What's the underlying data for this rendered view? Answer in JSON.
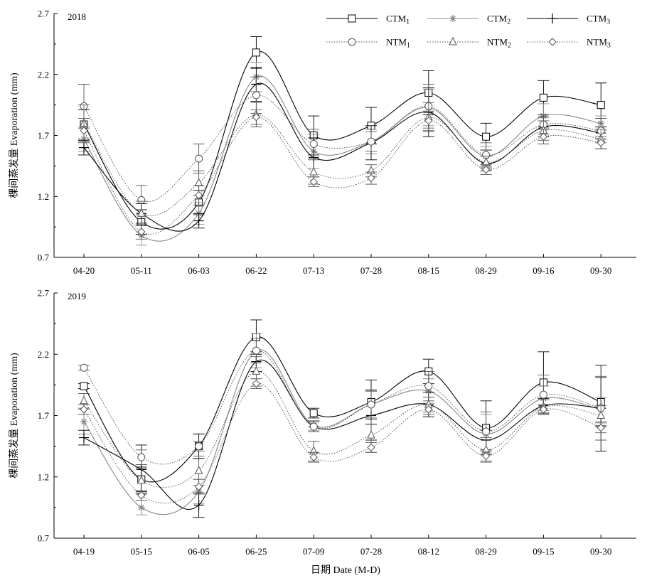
{
  "figure": {
    "x_axis_title": "日期 Date (M-D)",
    "legend": [
      {
        "label": "CTM",
        "sub": "1",
        "marker": "square",
        "style": "solid",
        "color": "#000000"
      },
      {
        "label": "CTM",
        "sub": "2",
        "marker": "asterisk",
        "style": "solid",
        "color": "#888888"
      },
      {
        "label": "CTM",
        "sub": "3",
        "marker": "plus",
        "style": "solid",
        "color": "#000000"
      },
      {
        "label": "NTM",
        "sub": "1",
        "marker": "circle",
        "style": "dotted",
        "color": "#555555"
      },
      {
        "label": "NTM",
        "sub": "2",
        "marker": "triangle",
        "style": "dotted",
        "color": "#555555"
      },
      {
        "label": "NTM",
        "sub": "3",
        "marker": "diamond",
        "style": "dotted",
        "color": "#555555"
      }
    ]
  },
  "chart_data": [
    {
      "type": "line",
      "panel_label": "2018",
      "ylabel": "棵间蒸发量 Evaporation (mm)",
      "ylim": [
        0.7,
        2.7
      ],
      "yticks": [
        "0.7",
        "1.2",
        "1.7",
        "2.2",
        "2.7"
      ],
      "categories": [
        "04-20",
        "05-11",
        "06-03",
        "06-22",
        "07-13",
        "07-28",
        "08-15",
        "08-29",
        "09-16",
        "09-30"
      ],
      "series": [
        {
          "name": "CTM1",
          "values": [
            1.79,
            0.99,
            1.15,
            2.38,
            1.7,
            1.78,
            2.05,
            1.69,
            2.01,
            1.95
          ],
          "err": [
            0.12,
            0.1,
            0.1,
            0.13,
            0.16,
            0.15,
            0.18,
            0.11,
            0.14,
            0.18
          ]
        },
        {
          "name": "CTM2",
          "values": [
            1.67,
            0.88,
            1.06,
            2.18,
            1.57,
            1.65,
            1.93,
            1.53,
            1.86,
            1.8
          ],
          "err": [
            0.1,
            0.08,
            0.09,
            0.12,
            0.14,
            0.1,
            0.15,
            0.08,
            0.1,
            0.06
          ]
        },
        {
          "name": "CTM3",
          "values": [
            1.6,
            1.06,
            1.0,
            2.12,
            1.52,
            1.64,
            1.89,
            1.47,
            1.77,
            1.72
          ],
          "err": [
            0.06,
            0.08,
            0.06,
            0.14,
            0.16,
            0.14,
            0.2,
            0.06,
            0.08,
            0.05
          ]
        },
        {
          "name": "NTM1",
          "values": [
            1.94,
            1.17,
            1.51,
            2.03,
            1.63,
            1.65,
            1.94,
            1.54,
            1.79,
            1.74
          ],
          "err": [
            0.18,
            0.12,
            0.12,
            0.15,
            0.12,
            0.08,
            0.18,
            0.1,
            0.08,
            0.1
          ]
        },
        {
          "name": "NTM2",
          "values": [
            1.8,
            1.06,
            1.31,
            1.87,
            1.4,
            1.41,
            1.85,
            1.48,
            1.74,
            1.67
          ],
          "err": [
            0.15,
            0.1,
            0.1,
            0.1,
            0.1,
            0.05,
            0.12,
            0.05,
            0.08,
            0.08
          ]
        },
        {
          "name": "NTM3",
          "values": [
            1.74,
            0.91,
            1.21,
            1.85,
            1.32,
            1.35,
            1.82,
            1.42,
            1.69,
            1.64
          ],
          "err": [
            0.1,
            0.06,
            0.08,
            0.06,
            0.04,
            0.05,
            0.08,
            0.04,
            0.06,
            0.05
          ]
        }
      ]
    },
    {
      "type": "line",
      "panel_label": "2019",
      "ylabel": "棵间蒸发量 Evaporation (mm)",
      "ylim": [
        0.7,
        2.7
      ],
      "yticks": [
        "0.7",
        "1.2",
        "1.7",
        "2.2",
        "2.7"
      ],
      "categories": [
        "04-19",
        "05-15",
        "06-05",
        "06-25",
        "07-09",
        "07-28",
        "08-12",
        "08-29",
        "09-15",
        "09-30"
      ],
      "series": [
        {
          "name": "CTM1",
          "values": [
            1.94,
            1.18,
            1.45,
            2.34,
            1.72,
            1.81,
            2.06,
            1.6,
            1.97,
            1.81
          ],
          "err": [
            0.02,
            0.1,
            0.1,
            0.14,
            0.04,
            0.18,
            0.1,
            0.22,
            0.25,
            0.2
          ]
        },
        {
          "name": "CTM2",
          "values": [
            1.65,
            0.95,
            1.08,
            2.23,
            1.62,
            1.79,
            1.9,
            1.55,
            1.84,
            1.75
          ],
          "err": [
            0.1,
            0.06,
            0.1,
            0.14,
            0.04,
            0.12,
            0.1,
            0.16,
            0.1,
            0.1
          ]
        },
        {
          "name": "CTM3",
          "values": [
            1.52,
            1.26,
            0.97,
            2.14,
            1.61,
            1.7,
            1.79,
            1.5,
            1.78,
            1.76
          ],
          "err": [
            0.06,
            0.2,
            0.1,
            0.08,
            0.04,
            0.2,
            0.1,
            0.08,
            0.06,
            0.35
          ]
        },
        {
          "name": "NTM1",
          "values": [
            2.09,
            1.36,
            1.45,
            2.23,
            1.61,
            1.79,
            1.94,
            1.57,
            1.87,
            1.76
          ],
          "err": [
            0.02,
            0.06,
            0.04,
            0.1,
            0.04,
            0.12,
            0.12,
            0.16,
            0.16,
            0.26
          ]
        },
        {
          "name": "NTM2",
          "values": [
            1.82,
            1.17,
            1.25,
            2.06,
            1.41,
            1.54,
            1.79,
            1.42,
            1.77,
            1.7
          ],
          "err": [
            0.06,
            0.1,
            0.12,
            0.12,
            0.08,
            0.14,
            0.06,
            0.1,
            0.06,
            0.08
          ]
        },
        {
          "name": "NTM3",
          "values": [
            1.75,
            1.05,
            1.12,
            1.96,
            1.36,
            1.44,
            1.75,
            1.37,
            1.75,
            1.6
          ],
          "err": [
            0.04,
            0.04,
            0.06,
            0.04,
            0.04,
            0.04,
            0.04,
            0.04,
            0.04,
            0.04
          ]
        }
      ]
    }
  ]
}
